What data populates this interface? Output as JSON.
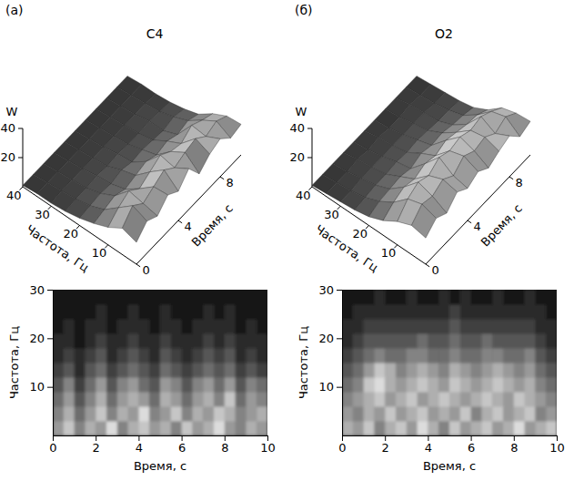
{
  "chart_data": [
    {
      "type": "surface",
      "title": "C4",
      "annotations": [
        "(а)"
      ],
      "xlabel": "Время, с",
      "ylabel": "Частота, Гц",
      "zlabel": "W",
      "x": [
        0,
        1,
        2,
        3,
        4,
        5,
        6,
        7,
        8,
        9,
        10
      ],
      "y": [
        0,
        5,
        10,
        15,
        20,
        25,
        30,
        35,
        40
      ],
      "z": [
        [
          15,
          22,
          18,
          25,
          20,
          28,
          17,
          23,
          26,
          19,
          21
        ],
        [
          18,
          26,
          20,
          24,
          28,
          22,
          25,
          27,
          21,
          24,
          20
        ],
        [
          12,
          18,
          22,
          16,
          20,
          24,
          19,
          17,
          22,
          18,
          15
        ],
        [
          8,
          10,
          12,
          9,
          11,
          13,
          10,
          12,
          9,
          11,
          8
        ],
        [
          5,
          6,
          7,
          6,
          8,
          6,
          7,
          6,
          5,
          7,
          5
        ],
        [
          3,
          4,
          4,
          5,
          4,
          5,
          4,
          4,
          5,
          4,
          3
        ],
        [
          2,
          3,
          3,
          3,
          3,
          3,
          3,
          3,
          3,
          3,
          2
        ],
        [
          2,
          2,
          2,
          2,
          2,
          2,
          2,
          2,
          2,
          2,
          2
        ],
        [
          1,
          1,
          1,
          1,
          1,
          1,
          1,
          1,
          1,
          1,
          1
        ]
      ],
      "xlim": [
        0,
        10
      ],
      "xticks": [
        0,
        4,
        8
      ],
      "ylim": [
        0,
        40
      ],
      "yticks": [
        10,
        20,
        30,
        40
      ],
      "zlim": [
        0,
        40
      ],
      "zticks": [
        20,
        40
      ]
    },
    {
      "type": "surface",
      "title": "O2",
      "annotations": [
        "(б)"
      ],
      "xlabel": "Время, с",
      "ylabel": "Частота, Гц",
      "zlabel": "W",
      "x": [
        0,
        1,
        2,
        3,
        4,
        5,
        6,
        7,
        8,
        9,
        10
      ],
      "y": [
        0,
        5,
        10,
        15,
        20,
        25,
        30,
        35,
        40
      ],
      "z": [
        [
          18,
          24,
          20,
          27,
          22,
          26,
          21,
          25,
          28,
          20,
          23
        ],
        [
          20,
          27,
          25,
          29,
          24,
          30,
          26,
          28,
          23,
          27,
          22
        ],
        [
          16,
          24,
          28,
          25,
          30,
          27,
          29,
          26,
          28,
          24,
          19
        ],
        [
          10,
          15,
          18,
          16,
          19,
          17,
          20,
          18,
          16,
          15,
          11
        ],
        [
          6,
          9,
          10,
          11,
          9,
          12,
          10,
          11,
          9,
          8,
          6
        ],
        [
          4,
          5,
          6,
          6,
          7,
          6,
          7,
          6,
          5,
          5,
          4
        ],
        [
          3,
          3,
          4,
          4,
          4,
          4,
          4,
          4,
          4,
          3,
          3
        ],
        [
          2,
          2,
          2,
          3,
          2,
          3,
          2,
          2,
          3,
          2,
          2
        ],
        [
          1,
          1,
          1,
          1,
          1,
          1,
          1,
          1,
          1,
          1,
          1
        ]
      ],
      "xlim": [
        0,
        10
      ],
      "xticks": [
        0,
        4,
        8
      ],
      "ylim": [
        0,
        40
      ],
      "yticks": [
        10,
        20,
        30,
        40
      ],
      "zlim": [
        0,
        40
      ],
      "zticks": [
        20,
        40
      ]
    },
    {
      "type": "heatmap",
      "xlabel": "Время, с",
      "ylabel": "Частота, Гц",
      "x_edges": [
        0,
        0.5,
        1,
        1.5,
        2,
        2.5,
        3,
        3.5,
        4,
        4.5,
        5,
        5.5,
        6,
        6.5,
        7,
        7.5,
        8,
        8.5,
        9,
        9.5,
        10
      ],
      "y_edges": [
        0,
        3,
        6,
        9,
        12,
        15,
        18,
        21,
        24,
        27,
        30
      ],
      "z": [
        [
          6,
          8,
          5,
          7,
          6,
          9,
          5,
          7,
          8,
          6,
          7,
          5,
          8,
          6,
          7,
          9,
          6,
          5,
          7,
          6
        ],
        [
          5,
          7,
          4,
          6,
          8,
          5,
          7,
          6,
          9,
          5,
          6,
          8,
          5,
          7,
          6,
          8,
          7,
          5,
          6,
          7
        ],
        [
          4,
          6,
          3,
          5,
          7,
          4,
          6,
          7,
          6,
          4,
          7,
          6,
          4,
          6,
          7,
          5,
          8,
          4,
          6,
          5
        ],
        [
          3,
          5,
          2,
          4,
          6,
          3,
          5,
          6,
          4,
          3,
          6,
          5,
          3,
          5,
          6,
          4,
          6,
          3,
          5,
          4
        ],
        [
          2,
          3,
          1,
          3,
          4,
          2,
          3,
          4,
          3,
          2,
          4,
          3,
          2,
          3,
          4,
          3,
          4,
          2,
          3,
          2
        ],
        [
          1,
          2,
          1,
          2,
          3,
          1,
          2,
          3,
          2,
          1,
          3,
          2,
          1,
          2,
          3,
          2,
          3,
          1,
          2,
          1
        ],
        [
          1,
          1,
          0,
          1,
          2,
          1,
          1,
          2,
          1,
          1,
          2,
          1,
          1,
          1,
          2,
          1,
          2,
          1,
          1,
          1
        ],
        [
          0,
          1,
          0,
          1,
          1,
          0,
          1,
          1,
          1,
          0,
          1,
          1,
          0,
          1,
          1,
          1,
          1,
          0,
          1,
          0
        ],
        [
          0,
          0,
          0,
          0,
          1,
          0,
          0,
          1,
          0,
          0,
          1,
          0,
          0,
          0,
          1,
          0,
          1,
          0,
          0,
          0
        ],
        [
          0,
          0,
          0,
          0,
          0,
          0,
          0,
          0,
          0,
          0,
          0,
          0,
          0,
          0,
          0,
          0,
          0,
          0,
          0,
          0
        ]
      ],
      "xlim": [
        0,
        10
      ],
      "xticks": [
        0,
        2,
        4,
        6,
        8,
        10
      ],
      "ylim": [
        0,
        30
      ],
      "yticks": [
        10,
        20,
        30
      ],
      "zlim": [
        0,
        10
      ]
    },
    {
      "type": "heatmap",
      "xlabel": "Время, с",
      "ylabel": "Частота, Гц",
      "x_edges": [
        0,
        0.5,
        1,
        1.5,
        2,
        2.5,
        3,
        3.5,
        4,
        4.5,
        5,
        5.5,
        6,
        6.5,
        7,
        7.5,
        8,
        8.5,
        9,
        9.5,
        10
      ],
      "y_edges": [
        0,
        3,
        6,
        9,
        12,
        15,
        18,
        21,
        24,
        27,
        30
      ],
      "z": [
        [
          7,
          6,
          8,
          5,
          7,
          8,
          6,
          9,
          7,
          5,
          8,
          6,
          7,
          8,
          6,
          7,
          9,
          6,
          7,
          8
        ],
        [
          6,
          5,
          7,
          6,
          8,
          6,
          7,
          8,
          6,
          7,
          6,
          8,
          5,
          7,
          8,
          6,
          7,
          8,
          5,
          6
        ],
        [
          5,
          6,
          7,
          8,
          6,
          7,
          8,
          6,
          7,
          8,
          7,
          6,
          7,
          8,
          7,
          6,
          8,
          7,
          6,
          5
        ],
        [
          4,
          5,
          8,
          9,
          7,
          6,
          7,
          8,
          7,
          6,
          8,
          7,
          6,
          7,
          8,
          7,
          6,
          7,
          5,
          4
        ],
        [
          3,
          4,
          6,
          8,
          7,
          5,
          6,
          7,
          6,
          5,
          7,
          6,
          5,
          6,
          7,
          6,
          5,
          6,
          4,
          3
        ],
        [
          2,
          3,
          4,
          5,
          4,
          4,
          5,
          5,
          4,
          4,
          5,
          4,
          4,
          5,
          5,
          4,
          4,
          5,
          3,
          2
        ],
        [
          1,
          2,
          3,
          3,
          3,
          3,
          3,
          4,
          3,
          3,
          4,
          3,
          3,
          4,
          3,
          3,
          3,
          3,
          2,
          1
        ],
        [
          1,
          1,
          2,
          2,
          2,
          2,
          2,
          2,
          2,
          2,
          3,
          2,
          2,
          2,
          2,
          2,
          2,
          2,
          1,
          1
        ],
        [
          0,
          1,
          1,
          1,
          1,
          1,
          1,
          1,
          1,
          1,
          2,
          1,
          1,
          1,
          1,
          1,
          1,
          1,
          1,
          0
        ],
        [
          0,
          0,
          0,
          1,
          0,
          0,
          1,
          0,
          0,
          1,
          0,
          1,
          0,
          0,
          1,
          0,
          0,
          1,
          0,
          0
        ]
      ],
      "xlim": [
        0,
        10
      ],
      "xticks": [
        0,
        2,
        4,
        6,
        8,
        10
      ],
      "ylim": [
        0,
        30
      ],
      "yticks": [
        10,
        20,
        30
      ],
      "zlim": [
        0,
        10
      ]
    }
  ]
}
